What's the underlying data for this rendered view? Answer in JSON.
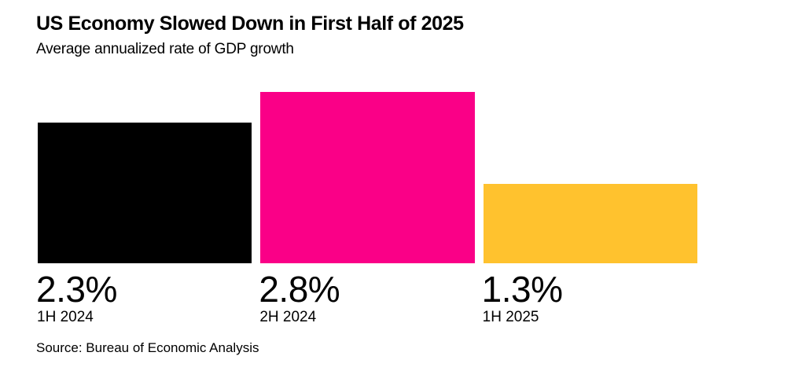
{
  "header": {
    "title": "US Economy Slowed Down in First Half of 2025",
    "subtitle": "Average annualized rate of GDP growth"
  },
  "source_note": "Source: Bureau of Economic Analysis",
  "colors": {
    "background": "#FFFFFF",
    "text": "#000000",
    "bar_black": "#000000",
    "bar_pink": "#FA0087",
    "bar_yellow": "#FFC22E"
  },
  "chart_data": {
    "type": "bar",
    "title": "US Economy Slowed Down in First Half of 2025",
    "subtitle": "Average annualized rate of GDP growth",
    "categories": [
      "1H 2024",
      "2H 2024",
      "1H 2025"
    ],
    "values": [
      2.3,
      2.8,
      1.3
    ],
    "value_labels": [
      "2.3%",
      "2.8%",
      "1.3%"
    ],
    "bar_colors": [
      "#000000",
      "#FA0087",
      "#FFC22E"
    ],
    "unit": "%",
    "xlabel": "",
    "ylabel": "Average annualized rate of GDP growth",
    "ylim": [
      0,
      2.8
    ],
    "grid": false,
    "legend_position": "none",
    "orientation": "vertical",
    "annotation_source": "Source: Bureau of Economic Analysis"
  }
}
